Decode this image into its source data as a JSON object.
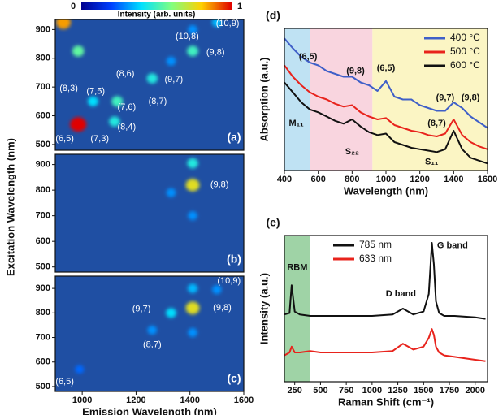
{
  "chart_data": [
    {
      "type": "heatmap",
      "panel": "(a)",
      "colorbar": {
        "label": "Intensity (arb. units)",
        "ticks": [
          0,
          1
        ]
      },
      "xlim": [
        900,
        1600
      ],
      "ylim": [
        480,
        935
      ],
      "yticks": [
        500,
        600,
        700,
        800,
        900
      ],
      "points": {
        "x": [
          985,
          985,
          930,
          1130,
          1120,
          1040,
          1260,
          1410,
          1330,
          1500,
          1410
        ],
        "y": [
          570,
          825,
          925,
          650,
          580,
          650,
          730,
          825,
          790,
          925,
          900
        ],
        "intensity": [
          1.0,
          0.55,
          0.85,
          0.5,
          0.45,
          0.4,
          0.45,
          0.5,
          0.3,
          0.35,
          0.3
        ]
      },
      "annotations": [
        {
          "text": "(8,3)",
          "x": 950,
          "y": 695
        },
        {
          "text": "(7,5)",
          "x": 1050,
          "y": 685
        },
        {
          "text": "(8,6)",
          "x": 1160,
          "y": 745
        },
        {
          "text": "(7,6)",
          "x": 1165,
          "y": 630
        },
        {
          "text": "(8,7)",
          "x": 1280,
          "y": 650
        },
        {
          "text": "(9,7)",
          "x": 1340,
          "y": 725
        },
        {
          "text": "(8,4)",
          "x": 1165,
          "y": 560
        },
        {
          "text": "(7,3)",
          "x": 1065,
          "y": 520
        },
        {
          "text": "(6,5)",
          "x": 935,
          "y": 520
        },
        {
          "text": "(10,8)",
          "x": 1390,
          "y": 875
        },
        {
          "text": "(9,8)",
          "x": 1495,
          "y": 820
        },
        {
          "text": "(10,9)",
          "x": 1540,
          "y": 920
        }
      ]
    },
    {
      "type": "heatmap",
      "panel": "(b)",
      "ylabel": "Excitation Wavelength (nm)",
      "xlim": [
        900,
        1600
      ],
      "ylim": [
        480,
        940
      ],
      "yticks": [
        500,
        600,
        700,
        800,
        900
      ],
      "points": {
        "x": [
          1410,
          1410,
          1330,
          1410
        ],
        "y": [
          820,
          905,
          790,
          700
        ],
        "intensity": [
          0.75,
          0.45,
          0.3,
          0.3
        ]
      },
      "annotations": [
        {
          "text": "(9,8)",
          "x": 1510,
          "y": 820
        }
      ]
    },
    {
      "type": "heatmap",
      "panel": "(c)",
      "xlabel": "Emission Wavelength (nm)",
      "xlim": [
        900,
        1600
      ],
      "ylim": [
        480,
        950
      ],
      "yticks": [
        500,
        600,
        700,
        800,
        900
      ],
      "xticks": [
        1000,
        1200,
        1400,
        1600
      ],
      "points": {
        "x": [
          1410,
          1330,
          1260,
          990,
          1500,
          1410,
          1410
        ],
        "y": [
          820,
          800,
          730,
          570,
          895,
          900,
          720
        ],
        "intensity": [
          0.75,
          0.4,
          0.3,
          0.25,
          0.3,
          0.35,
          0.3
        ]
      },
      "annotations": [
        {
          "text": "(9,7)",
          "x": 1220,
          "y": 815
        },
        {
          "text": "(9,8)",
          "x": 1520,
          "y": 820
        },
        {
          "text": "(8,7)",
          "x": 1260,
          "y": 670
        },
        {
          "text": "(6,5)",
          "x": 935,
          "y": 520
        },
        {
          "text": "(10,9)",
          "x": 1545,
          "y": 930
        }
      ]
    },
    {
      "type": "line",
      "panel": "(d)",
      "xlabel": "Wavelength (nm)",
      "ylabel": "Absorption (a.u.)",
      "xlim": [
        400,
        1600
      ],
      "ylim": [
        0,
        1
      ],
      "xticks": [
        400,
        600,
        800,
        1000,
        1200,
        1400,
        1600
      ],
      "legend": "upper right",
      "regions": [
        {
          "from": 400,
          "to": 550,
          "color": "#bfe2f3"
        },
        {
          "from": 550,
          "to": 920,
          "color": "#f9d5df"
        },
        {
          "from": 920,
          "to": 1600,
          "color": "#fbf5c4"
        }
      ],
      "x": [
        400,
        450,
        500,
        550,
        600,
        650,
        700,
        750,
        800,
        850,
        900,
        950,
        1000,
        1050,
        1100,
        1150,
        1200,
        1250,
        1300,
        1350,
        1400,
        1450,
        1500,
        1550,
        1600
      ],
      "series": [
        {
          "name": "400 °C",
          "color": "#3f5fc8",
          "values": [
            0.93,
            0.86,
            0.8,
            0.76,
            0.74,
            0.7,
            0.68,
            0.66,
            0.66,
            0.62,
            0.6,
            0.56,
            0.63,
            0.52,
            0.5,
            0.5,
            0.46,
            0.44,
            0.42,
            0.42,
            0.48,
            0.44,
            0.38,
            0.34,
            0.3
          ]
        },
        {
          "name": "500 °C",
          "color": "#e8231c",
          "values": [
            0.74,
            0.66,
            0.6,
            0.55,
            0.52,
            0.5,
            0.47,
            0.45,
            0.46,
            0.41,
            0.38,
            0.36,
            0.37,
            0.32,
            0.3,
            0.28,
            0.27,
            0.25,
            0.24,
            0.26,
            0.36,
            0.25,
            0.2,
            0.17,
            0.15
          ]
        },
        {
          "name": "600 °C",
          "color": "#111111",
          "values": [
            0.62,
            0.55,
            0.48,
            0.43,
            0.41,
            0.38,
            0.35,
            0.33,
            0.36,
            0.31,
            0.27,
            0.25,
            0.26,
            0.2,
            0.18,
            0.16,
            0.15,
            0.14,
            0.13,
            0.15,
            0.28,
            0.15,
            0.09,
            0.07,
            0.05
          ]
        }
      ],
      "annotations": [
        {
          "text": "(6,5)",
          "x": 540,
          "y": 0.8
        },
        {
          "text": "(9,8)",
          "x": 820,
          "y": 0.7
        },
        {
          "text": "(6,5)",
          "x": 1000,
          "y": 0.72
        },
        {
          "text": "(9,7)",
          "x": 1350,
          "y": 0.51
        },
        {
          "text": "(9,8)",
          "x": 1500,
          "y": 0.51
        },
        {
          "text": "(8,7)",
          "x": 1300,
          "y": 0.33
        },
        {
          "text": "M₁₁",
          "x": 470,
          "y": 0.33
        },
        {
          "text": "S₂₂",
          "x": 800,
          "y": 0.13
        },
        {
          "text": "S₁₁",
          "x": 1270,
          "y": 0.06
        }
      ]
    },
    {
      "type": "line",
      "panel": "(e)",
      "xlabel": "Raman Shift (cm⁻¹)",
      "ylabel": "Intensity (a.u.)",
      "xlim": [
        150,
        2120
      ],
      "ylim": [
        0,
        1
      ],
      "xticks": [
        250,
        500,
        750,
        1000,
        1250,
        1500,
        1750,
        2000
      ],
      "legend": "upper center",
      "regions": [
        {
          "from": 150,
          "to": 400,
          "color": "#9fd3a6"
        }
      ],
      "x": [
        150,
        200,
        220,
        250,
        300,
        400,
        500,
        750,
        1000,
        1200,
        1300,
        1350,
        1400,
        1500,
        1550,
        1580,
        1600,
        1620,
        1650,
        1700,
        1800,
        2000,
        2100
      ],
      "series": [
        {
          "name": "785 nm",
          "color": "#111111",
          "values": [
            0.46,
            0.47,
            0.66,
            0.48,
            0.46,
            0.45,
            0.45,
            0.45,
            0.45,
            0.46,
            0.5,
            0.48,
            0.46,
            0.48,
            0.6,
            0.95,
            0.8,
            0.55,
            0.47,
            0.45,
            0.45,
            0.44,
            0.43
          ]
        },
        {
          "name": "633 nm",
          "color": "#e8231c",
          "values": [
            0.18,
            0.2,
            0.24,
            0.2,
            0.2,
            0.21,
            0.2,
            0.2,
            0.2,
            0.21,
            0.26,
            0.24,
            0.22,
            0.24,
            0.3,
            0.36,
            0.32,
            0.24,
            0.2,
            0.18,
            0.17,
            0.15,
            0.14
          ]
        }
      ],
      "annotations": [
        {
          "text": "RBM",
          "x": 275,
          "y": 0.78
        },
        {
          "text": "D band",
          "x": 1280,
          "y": 0.6
        },
        {
          "text": "G band",
          "x": 1780,
          "y": 0.93
        }
      ]
    }
  ]
}
